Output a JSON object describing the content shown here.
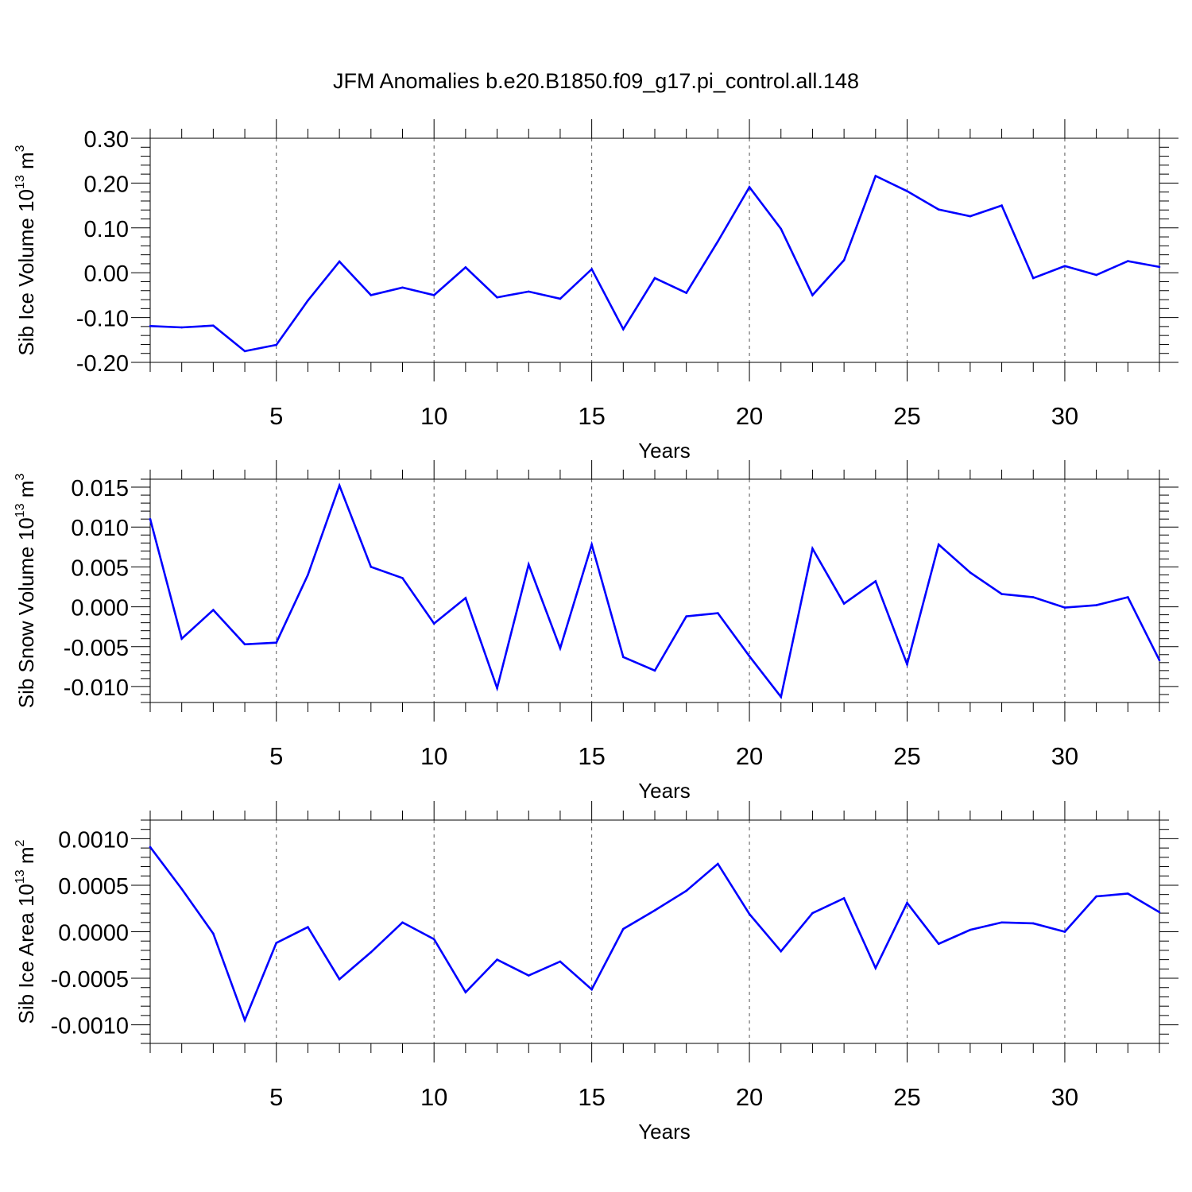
{
  "title": "JFM Anomalies b.e20.B1850.f09_g17.pi_control.all.148",
  "line_color": "#0000ff",
  "chart_data": [
    {
      "type": "line",
      "xlabel": "Years",
      "ylabel": "Sib Ice Volume 10",
      "ylabel_exp": "13",
      "ylabel_unit": " m",
      "ylabel_unit_exp": "3",
      "xlim": [
        1,
        33
      ],
      "ylim": [
        -0.2,
        0.3
      ],
      "xticks": [
        5,
        10,
        15,
        20,
        25,
        30
      ],
      "yticks": [
        -0.2,
        -0.1,
        0.0,
        0.1,
        0.2,
        0.3
      ],
      "ytick_labels": [
        "-0.20",
        "-0.10",
        "0.00",
        "0.10",
        "0.20",
        "0.30"
      ],
      "x": [
        1,
        2,
        3,
        4,
        5,
        6,
        7,
        8,
        9,
        10,
        11,
        12,
        13,
        14,
        15,
        16,
        17,
        18,
        19,
        20,
        21,
        22,
        23,
        24,
        25,
        26,
        27,
        28,
        29,
        30,
        31,
        32,
        33
      ],
      "series": [
        {
          "name": "Sib Ice Volume",
          "values": [
            -0.119,
            -0.122,
            -0.118,
            -0.175,
            -0.161,
            -0.062,
            0.025,
            -0.05,
            -0.033,
            -0.05,
            0.012,
            -0.055,
            -0.042,
            -0.058,
            0.008,
            -0.126,
            -0.012,
            -0.045,
            0.07,
            0.191,
            0.098,
            -0.05,
            0.028,
            0.216,
            0.182,
            0.141,
            0.126,
            0.15,
            -0.012,
            0.015,
            -0.005,
            0.026,
            0.013
          ]
        }
      ]
    },
    {
      "type": "line",
      "xlabel": "Years",
      "ylabel": "Sib Snow Volume 10",
      "ylabel_exp": "13",
      "ylabel_unit": " m",
      "ylabel_unit_exp": "3",
      "xlim": [
        1,
        33
      ],
      "ylim": [
        -0.012,
        0.016
      ],
      "xticks": [
        5,
        10,
        15,
        20,
        25,
        30
      ],
      "yticks": [
        -0.01,
        -0.005,
        0.0,
        0.005,
        0.01,
        0.015
      ],
      "ytick_labels": [
        "-0.010",
        "-0.005",
        "0.000",
        "0.005",
        "0.010",
        "0.015"
      ],
      "x": [
        1,
        2,
        3,
        4,
        5,
        6,
        7,
        8,
        9,
        10,
        11,
        12,
        13,
        14,
        15,
        16,
        17,
        18,
        19,
        20,
        21,
        22,
        23,
        24,
        25,
        26,
        27,
        28,
        29,
        30,
        31,
        32,
        33
      ],
      "series": [
        {
          "name": "Sib Snow Volume",
          "values": [
            0.011,
            -0.004,
            -0.0004,
            -0.0047,
            -0.0045,
            0.004,
            0.0152,
            0.005,
            0.0036,
            -0.0021,
            0.0011,
            -0.0102,
            0.0053,
            -0.0052,
            0.0078,
            -0.0063,
            -0.008,
            -0.0012,
            -0.0008,
            -0.0062,
            -0.0113,
            0.0073,
            0.0004,
            0.0032,
            -0.0072,
            0.0078,
            0.0043,
            0.0016,
            0.0012,
            -0.0001,
            0.0002,
            0.0012,
            -0.0067
          ]
        }
      ]
    },
    {
      "type": "line",
      "xlabel": "Years",
      "ylabel": "Sib Ice Area 10",
      "ylabel_exp": "13",
      "ylabel_unit": " m",
      "ylabel_unit_exp": "2",
      "xlim": [
        1,
        33
      ],
      "ylim": [
        -0.0012,
        0.0012
      ],
      "xticks": [
        5,
        10,
        15,
        20,
        25,
        30
      ],
      "yticks": [
        -0.001,
        -0.0005,
        0.0,
        0.0005,
        0.001
      ],
      "ytick_labels": [
        "-0.0010",
        "-0.0005",
        "0.0000",
        "0.0005",
        "0.0010"
      ],
      "x": [
        1,
        2,
        3,
        4,
        5,
        6,
        7,
        8,
        9,
        10,
        11,
        12,
        13,
        14,
        15,
        16,
        17,
        18,
        19,
        20,
        21,
        22,
        23,
        24,
        25,
        26,
        27,
        28,
        29,
        30,
        31,
        32,
        33
      ],
      "series": [
        {
          "name": "Sib Ice Area",
          "values": [
            0.00091,
            0.00046,
            -2e-05,
            -0.00095,
            -0.00012,
            5e-05,
            -0.00051,
            -0.00022,
            0.0001,
            -8e-05,
            -0.00065,
            -0.0003,
            -0.00047,
            -0.00032,
            -0.00062,
            3e-05,
            0.00023,
            0.00044,
            0.00073,
            0.00019,
            -0.00021,
            0.0002,
            0.00036,
            -0.00039,
            0.00031,
            -0.00013,
            2e-05,
            0.0001,
            9e-05,
            0.0,
            0.00038,
            0.00041,
            0.00021
          ]
        }
      ]
    }
  ]
}
